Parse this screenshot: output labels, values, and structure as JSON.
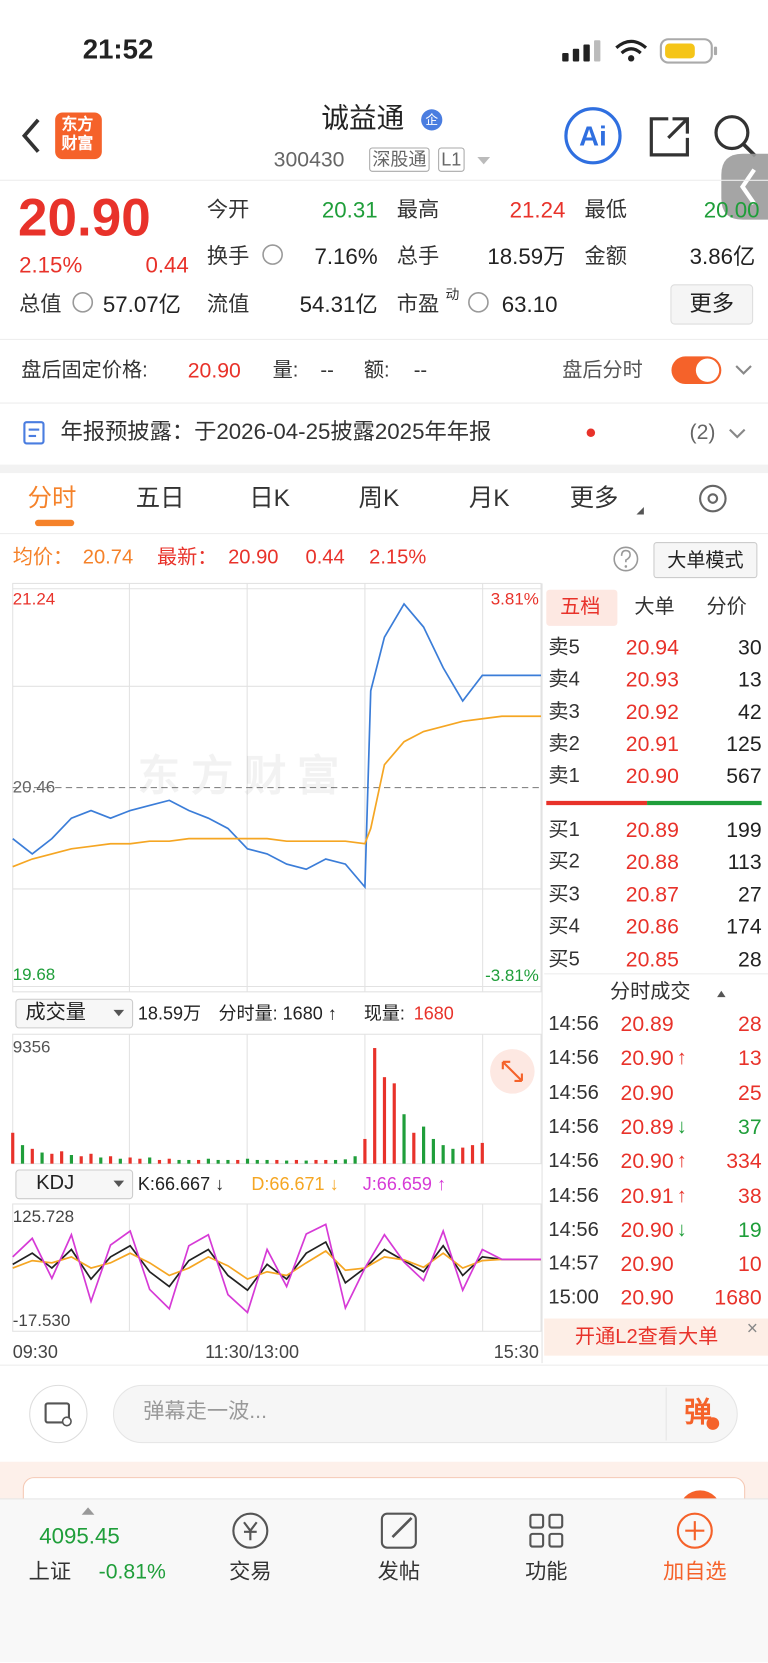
{
  "status_bar": {
    "time": "21:52"
  },
  "header": {
    "logo": [
      "东方",
      "财富"
    ],
    "title": "诚益通",
    "badge": "企",
    "code": "300430",
    "tags": [
      "深股通",
      "L1"
    ],
    "ai": "Ai"
  },
  "quote": {
    "price": "20.90",
    "change_pct": "2.15%",
    "change": "0.44",
    "fields": [
      {
        "label": "今开",
        "value": "20.31"
      },
      {
        "label": "最高",
        "value": "21.24"
      },
      {
        "label": "最低",
        "value": "20.00"
      },
      {
        "label": "换手",
        "value": "7.16%"
      },
      {
        "label": "总手",
        "value": "18.59万"
      },
      {
        "label": "金额",
        "value": "3.86亿"
      },
      {
        "label": "总值",
        "value": "57.07亿"
      },
      {
        "label": "流值",
        "value": "54.31亿"
      },
      {
        "label": "市盈",
        "sup": "动",
        "value": "63.10"
      }
    ],
    "more_button": "更多"
  },
  "after_hours": {
    "label": "盘后固定价格:",
    "price": "20.90",
    "volume_label": "量:",
    "volume": "--",
    "amount_label": "额:",
    "amount": "--",
    "toggle_label": "盘后分时"
  },
  "notice": {
    "text": "年报预披露：于2026-04-25披露2025年年报",
    "count": "(2)"
  },
  "tabs": [
    "分时",
    "五日",
    "日K",
    "周K",
    "月K",
    "更多"
  ],
  "info_bar": {
    "avg_label": "均价：",
    "avg": "20.74",
    "latest_label": "最新：",
    "latest": "20.90",
    "change": "0.44",
    "change_pct": "2.15%",
    "mode_button": "大单模式"
  },
  "price_chart": {
    "type": "line",
    "watermark": "东方财富",
    "x": [
      0,
      10,
      20,
      30,
      40,
      50,
      60,
      70,
      80,
      90,
      100,
      110,
      120,
      130,
      140,
      150,
      160,
      170,
      180,
      183,
      190,
      200,
      210,
      220,
      230,
      240,
      250,
      260,
      270
    ],
    "series": [
      {
        "color": "#3b7dd8",
        "values": [
          20.26,
          20.2,
          20.26,
          20.34,
          20.37,
          20.34,
          20.37,
          20.39,
          20.41,
          20.37,
          20.34,
          20.3,
          20.22,
          20.2,
          20.16,
          20.14,
          20.18,
          20.16,
          20.07,
          20.84,
          21.05,
          21.18,
          21.09,
          20.93,
          20.8,
          20.9,
          20.9,
          20.9,
          20.9
        ]
      },
      {
        "color": "#f5a623",
        "values": [
          20.15,
          20.18,
          20.2,
          20.22,
          20.23,
          20.24,
          20.24,
          20.25,
          20.25,
          20.26,
          20.26,
          20.26,
          20.26,
          20.26,
          20.25,
          20.25,
          20.25,
          20.25,
          20.24,
          20.3,
          20.55,
          20.64,
          20.68,
          20.7,
          20.72,
          20.73,
          20.74,
          20.74,
          20.74
        ]
      }
    ],
    "xlim": [
      0,
      270
    ],
    "ylim": [
      19.68,
      21.24
    ],
    "yticks": [
      19.68,
      20.46,
      21.24
    ],
    "pct_labels": [
      "3.81%",
      "-3.81%"
    ],
    "xticks": [
      {
        "value": 0,
        "label": "09:30"
      },
      {
        "value": 120,
        "label": "11:30/13:00"
      },
      {
        "value": 270,
        "label": "15:30"
      }
    ]
  },
  "volume": {
    "type": "bar",
    "selector": "成交量",
    "total": "18.59万",
    "period_volume": "分时量: 1680 ↑",
    "current_label": "现量:",
    "current": "1680",
    "x": [
      0,
      5,
      10,
      15,
      20,
      25,
      30,
      35,
      40,
      45,
      50,
      55,
      60,
      65,
      70,
      75,
      80,
      85,
      90,
      95,
      100,
      105,
      110,
      115,
      120,
      125,
      130,
      135,
      140,
      145,
      150,
      155,
      160,
      165,
      170,
      175,
      180,
      185,
      190,
      195,
      200,
      205,
      210,
      215,
      220,
      225,
      230,
      235,
      240
    ],
    "values": [
      2500,
      1500,
      1200,
      900,
      800,
      1000,
      700,
      600,
      800,
      500,
      600,
      400,
      500,
      400,
      500,
      300,
      400,
      300,
      300,
      300,
      400,
      300,
      300,
      300,
      400,
      300,
      300,
      300,
      250,
      300,
      250,
      300,
      300,
      300,
      350,
      600,
      2000,
      9356,
      7000,
      6500,
      4000,
      2500,
      3000,
      2000,
      1500,
      1200,
      1300,
      1500,
      1680
    ],
    "colors": [
      "#e8322a",
      "#1f9e3a",
      "#e8322a",
      "#1f9e3a",
      "#e8322a",
      "#e8322a",
      "#1f9e3a",
      "#e8322a",
      "#e8322a",
      "#1f9e3a",
      "#e8322a",
      "#1f9e3a",
      "#e8322a",
      "#e8322a",
      "#1f9e3a",
      "#e8322a",
      "#e8322a",
      "#1f9e3a",
      "#1f9e3a",
      "#e8322a",
      "#1f9e3a",
      "#1f9e3a",
      "#1f9e3a",
      "#e8322a",
      "#1f9e3a",
      "#1f9e3a",
      "#1f9e3a",
      "#e8322a",
      "#1f9e3a",
      "#e8322a",
      "#1f9e3a",
      "#e8322a",
      "#e8322a",
      "#1f9e3a",
      "#1f9e3a",
      "#1f9e3a",
      "#e8322a",
      "#e8322a",
      "#e8322a",
      "#e8322a",
      "#1f9e3a",
      "#e8322a",
      "#1f9e3a",
      "#1f9e3a",
      "#1f9e3a",
      "#1f9e3a",
      "#e8322a",
      "#e8322a",
      "#e8322a"
    ],
    "xlim": [
      0,
      270
    ],
    "ylim": [
      0,
      9356
    ],
    "yticks": [
      9356
    ]
  },
  "kdj": {
    "type": "line",
    "selector": "KDJ",
    "x": [
      0,
      10,
      20,
      30,
      40,
      50,
      60,
      70,
      80,
      90,
      100,
      110,
      120,
      130,
      140,
      150,
      160,
      170,
      180,
      190,
      200,
      210,
      220,
      230,
      240,
      250,
      260,
      270
    ],
    "series": [
      {
        "name": "K:66.667 ↓",
        "color": "#222222",
        "values": [
          60,
          75,
          55,
          80,
          40,
          70,
          85,
          50,
          30,
          65,
          80,
          45,
          25,
          60,
          40,
          75,
          90,
          35,
          55,
          80,
          65,
          50,
          85,
          45,
          70,
          66.667,
          66.667,
          66.667
        ]
      },
      {
        "name": "D:66.671 ↓",
        "color": "#f5a623",
        "values": [
          55,
          65,
          62,
          70,
          55,
          62,
          75,
          62,
          45,
          55,
          70,
          58,
          40,
          50,
          45,
          62,
          78,
          52,
          55,
          70,
          66,
          56,
          75,
          55,
          65,
          66.671,
          66.671,
          66.671
        ]
      },
      {
        "name": "J:66.659 ↑",
        "color": "#d63ad6",
        "values": [
          70,
          95,
          41,
          100,
          10,
          86,
          105,
          26,
          0,
          85,
          100,
          19,
          -5,
          80,
          30,
          101,
          114,
          1,
          55,
          100,
          63,
          38,
          105,
          25,
          80,
          66.659,
          66.659,
          66.659
        ]
      }
    ],
    "xlim": [
      0,
      270
    ],
    "ylim": [
      -17.53,
      125.728
    ],
    "yticks": [
      125.728,
      {
        "value": -17.53,
        "label": "-17.530"
      }
    ]
  },
  "order_book": {
    "tabs": [
      "五档",
      "大单",
      "分价"
    ],
    "asks": [
      {
        "label": "卖5",
        "price": "20.94",
        "volume": "30"
      },
      {
        "label": "卖4",
        "price": "20.93",
        "volume": "13"
      },
      {
        "label": "卖3",
        "price": "20.92",
        "volume": "42"
      },
      {
        "label": "卖2",
        "price": "20.91",
        "volume": "125"
      },
      {
        "label": "卖1",
        "price": "20.90",
        "volume": "567"
      }
    ],
    "bids": [
      {
        "label": "买1",
        "price": "20.89",
        "volume": "199"
      },
      {
        "label": "买2",
        "price": "20.88",
        "volume": "113"
      },
      {
        "label": "买3",
        "price": "20.87",
        "volume": "27"
      },
      {
        "label": "买4",
        "price": "20.86",
        "volume": "174"
      },
      {
        "label": "买5",
        "price": "20.85",
        "volume": "28"
      }
    ]
  },
  "trades": {
    "title": "分时成交",
    "rows": [
      {
        "time": "14:56",
        "price": "20.89",
        "volume": "28"
      },
      {
        "time": "14:56",
        "price": "20.90",
        "arrow": "↑",
        "volume": "13"
      },
      {
        "time": "14:56",
        "price": "20.90",
        "volume": "25"
      },
      {
        "time": "14:56",
        "price": "20.89",
        "arrow": "↓",
        "volume": "37"
      },
      {
        "time": "14:56",
        "price": "20.90",
        "arrow": "↑",
        "volume": "334"
      },
      {
        "time": "14:56",
        "price": "20.91",
        "arrow": "↑",
        "volume": "38"
      },
      {
        "time": "14:56",
        "price": "20.90",
        "arrow": "↓",
        "volume": "19"
      },
      {
        "time": "14:57",
        "price": "20.90",
        "volume": "10"
      },
      {
        "time": "15:00",
        "price": "20.90",
        "volume": "1680"
      }
    ]
  },
  "banner": {
    "text": "开通L2查看大单",
    "close": "×"
  },
  "comment": {
    "placeholder": "弹幕走一波...",
    "button": "弹"
  },
  "bottom_bar": {
    "index_value": "4095.45",
    "index_name": "上证",
    "index_change": "-0.81%",
    "nav": [
      "交易",
      "发帖",
      "功能",
      "加自选"
    ]
  }
}
